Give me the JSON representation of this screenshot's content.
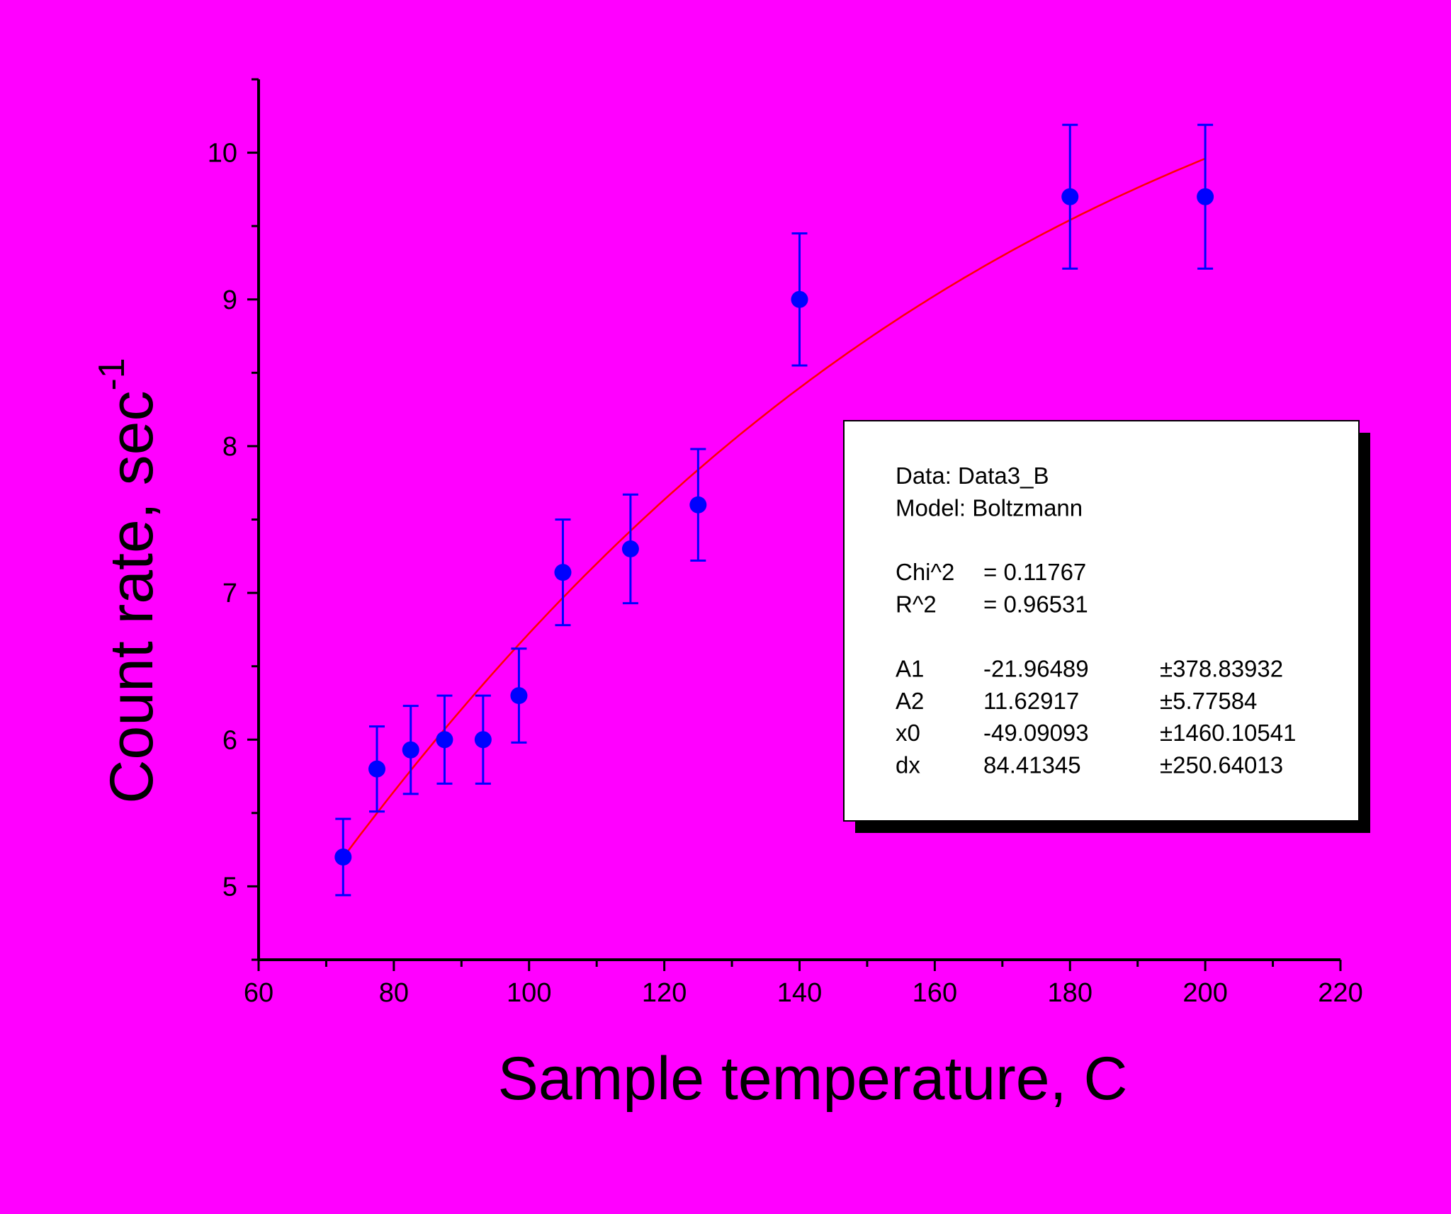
{
  "background_color": "#ff00ff",
  "chart_data": {
    "type": "scatter",
    "xlabel": "Sample temperature, C",
    "ylabel": "Count rate, sec",
    "ylabel_superscript": "-1",
    "xlim": [
      60,
      220
    ],
    "ylim": [
      4.5,
      10.5
    ],
    "x_ticks": [
      "60",
      "80",
      "100",
      "120",
      "140",
      "160",
      "180",
      "200",
      "220"
    ],
    "y_ticks": [
      "5",
      "6",
      "7",
      "8",
      "9",
      "10"
    ],
    "grid": false,
    "series": [
      {
        "kind": "points_with_error_bars",
        "color": "#0000ff",
        "points": [
          {
            "x": 72.5,
            "y": 5.2,
            "yerr": 0.26
          },
          {
            "x": 77.5,
            "y": 5.8,
            "yerr": 0.29
          },
          {
            "x": 82.5,
            "y": 5.93,
            "yerr": 0.3
          },
          {
            "x": 87.5,
            "y": 6.0,
            "yerr": 0.3
          },
          {
            "x": 93.2,
            "y": 6.0,
            "yerr": 0.3
          },
          {
            "x": 98.5,
            "y": 6.3,
            "yerr": 0.32
          },
          {
            "x": 105.0,
            "y": 7.14,
            "yerr": 0.36
          },
          {
            "x": 115.0,
            "y": 7.3,
            "yerr": 0.37
          },
          {
            "x": 125.0,
            "y": 7.6,
            "yerr": 0.38
          },
          {
            "x": 140.0,
            "y": 9.0,
            "yerr": 0.45
          },
          {
            "x": 180.0,
            "y": 9.7,
            "yerr": 0.49
          },
          {
            "x": 200.0,
            "y": 9.7,
            "yerr": 0.49
          }
        ]
      },
      {
        "kind": "fit_curve",
        "model": "Boltzmann",
        "color": "#ff0000",
        "A1": -21.96489,
        "A2": 11.62917,
        "x0": -49.09093,
        "dx": 84.41345,
        "x_range": [
          72.5,
          200
        ]
      }
    ],
    "legend": {
      "position": "center-right",
      "lines": [
        [
          "Data: Data3_B"
        ],
        [
          "Model: Boltzmann"
        ],
        [],
        [
          "Chi^2",
          "=  0.11767"
        ],
        [
          "R^2",
          "=  0.96531"
        ],
        [],
        [
          "A1",
          "-21.96489",
          "±378.83932"
        ],
        [
          "A2",
          "11.62917",
          "±5.77584"
        ],
        [
          "x0",
          "-49.09093",
          "±1460.10541"
        ],
        [
          "dx",
          "84.41345",
          "±250.64013"
        ]
      ]
    }
  }
}
